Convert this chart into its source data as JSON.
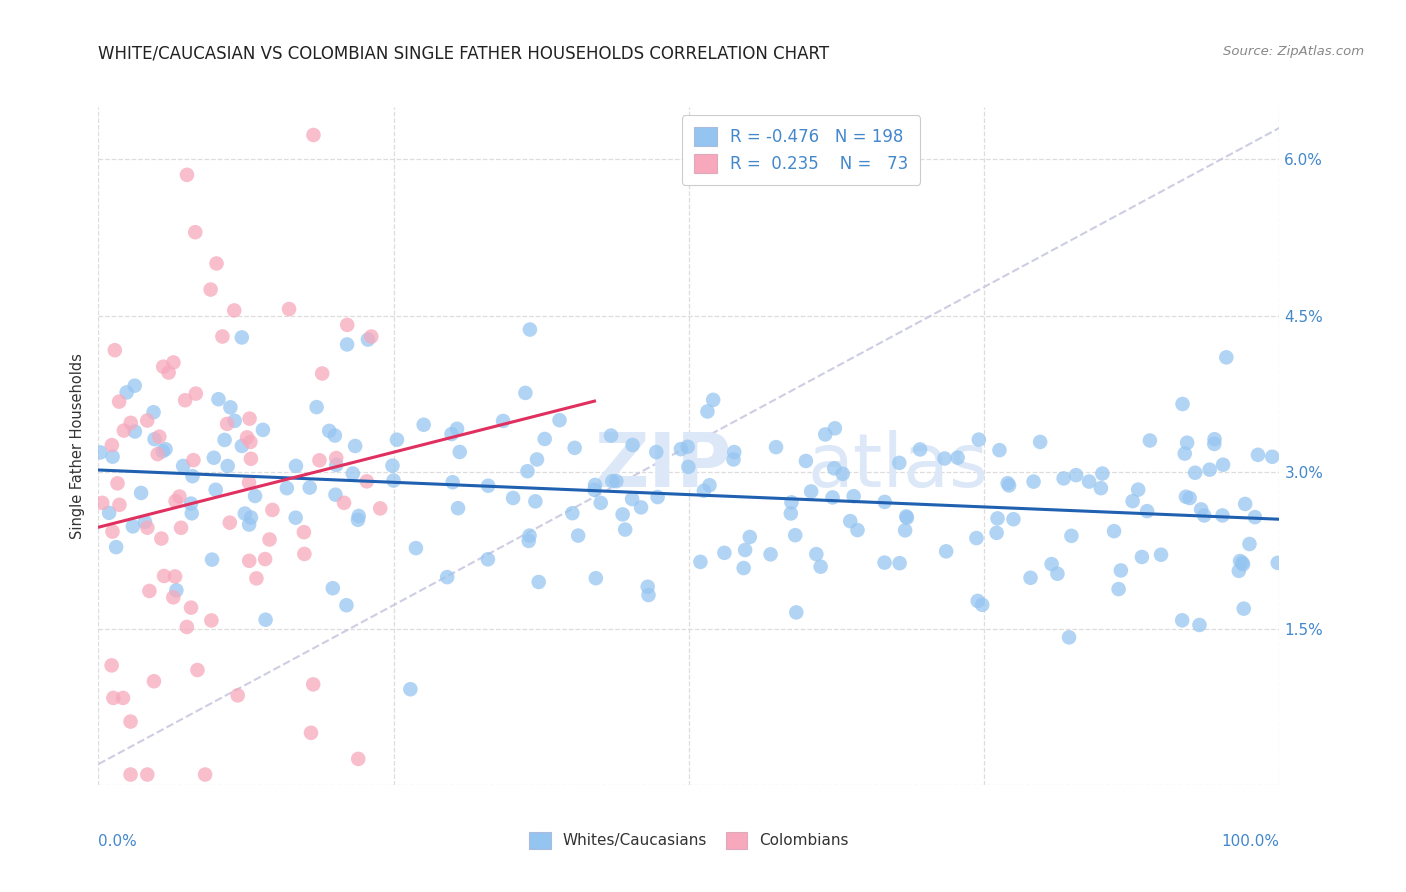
{
  "title": "WHITE/CAUCASIAN VS COLOMBIAN SINGLE FATHER HOUSEHOLDS CORRELATION CHART",
  "source": "Source: ZipAtlas.com",
  "ylabel": "Single Father Households",
  "blue_R": -0.476,
  "blue_N": 198,
  "pink_R": 0.235,
  "pink_N": 73,
  "blue_color": "#94c4f0",
  "pink_color": "#f7a8bc",
  "blue_line_color": "#2060b0",
  "pink_line_color": "#e03060",
  "dash_color": "#c8c8e0",
  "legend_blue_label": "Whites/Caucasians",
  "legend_pink_label": "Colombians",
  "background_color": "#ffffff",
  "grid_color": "#dddddd",
  "title_fontsize": 12,
  "axis_label_color": "#4488cc",
  "watermark_color": "#dce8f8",
  "y_min": 0.0,
  "y_max": 6.5,
  "x_min": 0.0,
  "x_max": 1.0,
  "yticks": [
    0.0,
    1.5,
    3.0,
    4.5,
    6.0
  ],
  "xticks": [
    0.0,
    0.25,
    0.5,
    0.75,
    1.0
  ]
}
